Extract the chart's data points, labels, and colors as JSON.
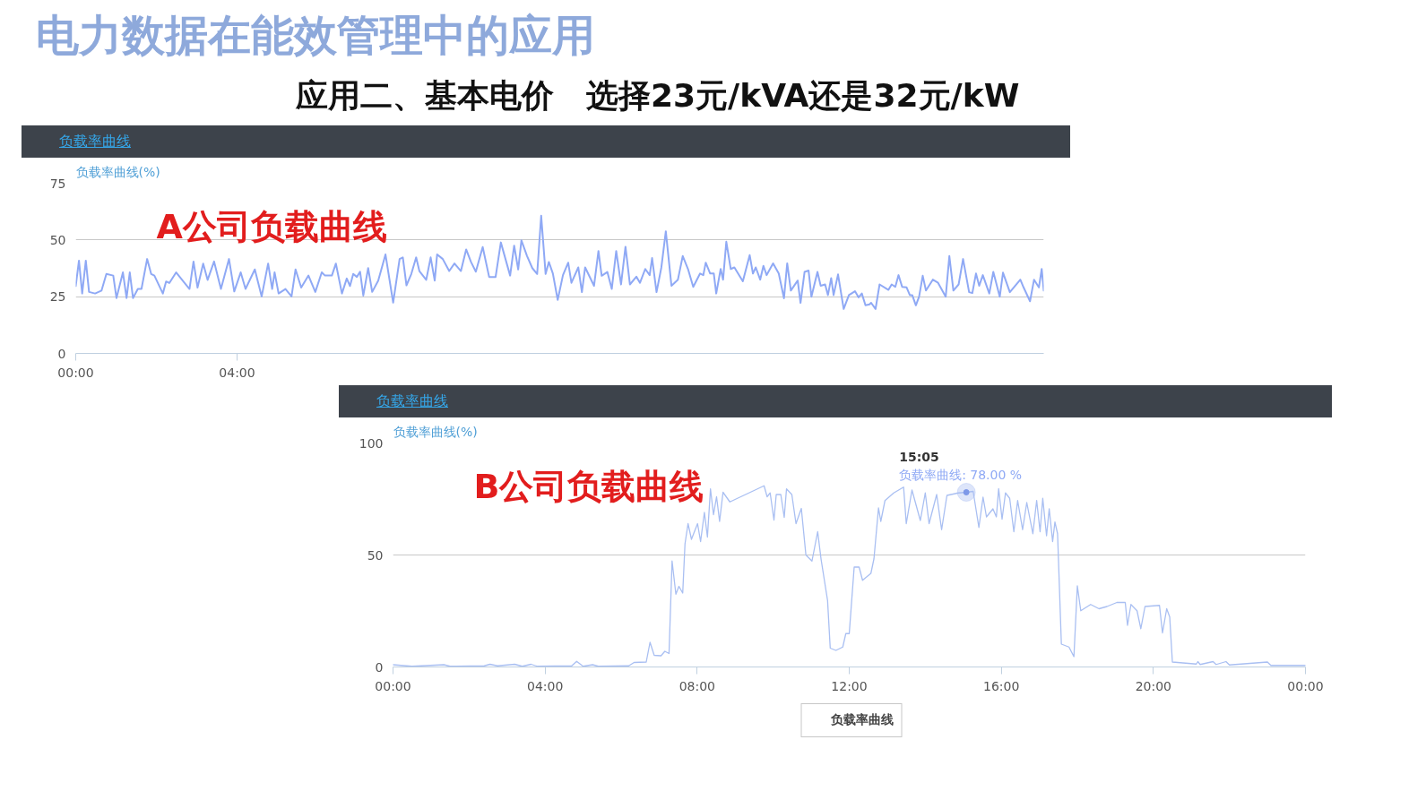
{
  "chart_data": [
    {
      "type": "line",
      "title": "负载率曲线",
      "ylabel": "负载率曲线(%)",
      "annotations": [
        "电力数据在能效管理中的应用",
        "应用二、基本电价　选择23元/kVA还是32元/kW",
        "A公司负载曲线"
      ],
      "xlim": [
        0,
        24
      ],
      "xticks": [
        {
          "value": 0,
          "label": "00:00"
        },
        {
          "value": 4,
          "label": "04:00"
        }
      ],
      "ylim": [
        0,
        75
      ],
      "yticks": [
        0,
        25,
        50,
        75
      ],
      "grid": "y",
      "marker": "none",
      "line_style": "solid",
      "series": [
        {
          "color": "#8fa9f5",
          "x": [
            0,
            0.08,
            0.16,
            0.25,
            0.33,
            0.48,
            0.64,
            0.76,
            0.93,
            1.01,
            1.17,
            1.26,
            1.34,
            1.42,
            1.54,
            1.63,
            1.77,
            1.87,
            1.95,
            2.16,
            2.24,
            2.32,
            2.49,
            2.61,
            2.82,
            2.92,
            3.02,
            3.16,
            3.27,
            3.43,
            3.6,
            3.8,
            3.93,
            4.09,
            4.21,
            4.44,
            4.61,
            4.77,
            4.87,
            4.93,
            5.03,
            5.2,
            5.35,
            5.45,
            5.59,
            5.77,
            5.94,
            6.1,
            6.18,
            6.35,
            6.45,
            6.6,
            6.72,
            6.8,
            6.88,
            6.97,
            7.05,
            7.13,
            7.25,
            7.35,
            7.5,
            7.68,
            7.87,
            8.03,
            8.11,
            8.2,
            8.32,
            8.44,
            8.52,
            8.69,
            8.8,
            8.9,
            8.96,
            9.1,
            9.26,
            9.39,
            9.55,
            9.68,
            9.8,
            9.92,
            10.09,
            10.25,
            10.41,
            10.54,
            10.77,
            10.87,
            10.97,
            11.05,
            11.19,
            11.32,
            11.44,
            11.54,
            11.65,
            11.73,
            11.83,
            11.95,
            12.08,
            12.21,
            12.29,
            12.46,
            12.55,
            12.63,
            12.85,
            12.96,
            13.04,
            13.18,
            13.29,
            13.4,
            13.52,
            13.63,
            13.74,
            13.9,
            13.99,
            14.12,
            14.23,
            14.29,
            14.4,
            14.52,
            14.63,
            14.77,
            14.93,
            15.05,
            15.18,
            15.31,
            15.48,
            15.56,
            15.62,
            15.73,
            15.82,
            15.88,
            15.99,
            16.05,
            16.13,
            16.24,
            16.33,
            16.54,
            16.71,
            16.79,
            16.86,
            16.97,
            17.05,
            17.13,
            17.29,
            17.43,
            17.56,
            17.64,
            17.73,
            17.9,
            17.97,
            18.07,
            18.17,
            18.24,
            18.39,
            18.47,
            18.58,
            18.65,
            18.73,
            18.79,
            18.9,
            19.04,
            19.17,
            19.32,
            19.41,
            19.49,
            19.58,
            19.68,
            19.72,
            19.83,
            19.93,
            20.15,
            20.23,
            20.32,
            20.4,
            20.49,
            20.6,
            20.68,
            20.74,
            20.83,
            20.91,
            21.0,
            21.08,
            21.25,
            21.38,
            21.57,
            21.66,
            21.76,
            21.89,
            22.0,
            22.15,
            22.23,
            22.32,
            22.4,
            22.49,
            22.65,
            22.75,
            22.91,
            22.99,
            23.16,
            23.42,
            23.5,
            23.66,
            23.76,
            23.88,
            23.95,
            24
          ],
          "values": [
            29.7,
            40.9,
            26.4,
            40.9,
            27.1,
            26.4,
            27.7,
            35,
            34.3,
            24.4,
            35.7,
            24.4,
            35.7,
            24.4,
            28.4,
            28.4,
            41.6,
            35,
            34.3,
            26.4,
            31.7,
            31,
            35.7,
            33,
            28.4,
            40.5,
            29,
            39.6,
            32.4,
            40.5,
            28.4,
            41.6,
            27.3,
            35.7,
            28.4,
            37,
            25.1,
            39.6,
            28.4,
            35.7,
            26.4,
            28.4,
            25.1,
            37,
            29,
            34.3,
            27.1,
            35.7,
            34.3,
            34.3,
            39.6,
            26.4,
            33,
            29.7,
            35,
            33.7,
            36,
            25.5,
            37.6,
            27.1,
            32.1,
            43.6,
            22.4,
            41.6,
            42.3,
            30,
            35,
            42.3,
            36.3,
            32.4,
            42.3,
            32.1,
            43.6,
            41.6,
            36.3,
            39.6,
            36.3,
            45.8,
            40.3,
            36,
            46.9,
            33.7,
            33.7,
            48.9,
            34.3,
            47.5,
            37,
            49.8,
            42.9,
            37.6,
            35,
            60.7,
            35,
            40.3,
            35.2,
            23.6,
            34.5,
            40,
            31.1,
            37.9,
            27,
            37.9,
            29.8,
            45.1,
            34.2,
            35.9,
            28.4,
            45.1,
            30.4,
            47,
            30.4,
            33.8,
            31.1,
            37.2,
            34.5,
            42,
            27,
            37.9,
            53.8,
            29.8,
            32.5,
            42.9,
            37.2,
            29.3,
            35.2,
            34.5,
            40,
            35.2,
            35.2,
            26.4,
            37.2,
            32.5,
            49.2,
            37.2,
            37.9,
            31.8,
            43.3,
            35.2,
            37.9,
            32.5,
            38.6,
            34.5,
            39.7,
            35.2,
            24.3,
            39.7,
            27.7,
            32.1,
            22.3,
            35.9,
            36.5,
            25,
            35.9,
            29.8,
            30.4,
            25.7,
            33.2,
            25.7,
            34.8,
            19.6,
            25.7,
            27.4,
            24.7,
            26.4,
            21.2,
            21.6,
            22.3,
            19.6,
            30.4,
            28,
            30.4,
            29.3,
            34.5,
            29.3,
            29.1,
            25.7,
            25.7,
            21.2,
            25,
            34.2,
            27.7,
            32.5,
            31.1,
            25,
            42.9,
            27.7,
            30.4,
            41.6,
            27,
            26.6,
            35.2,
            29.8,
            34.5,
            26.4,
            35.9,
            25,
            35.6,
            27,
            32.5,
            29.1,
            23,
            32.5,
            29.1,
            37.2,
            27.7
          ]
        }
      ]
    },
    {
      "type": "line",
      "title": "负载率曲线",
      "ylabel": "负载率曲线(%)",
      "annotations": [
        {
          "text": "15:05\n负载率曲线: 78.00 %",
          "x": 15.08,
          "y": 78
        },
        "B公司负载曲线"
      ],
      "xlim": [
        0,
        24
      ],
      "xticks": [
        {
          "value": 0,
          "label": "00:00"
        },
        {
          "value": 4,
          "label": "04:00"
        },
        {
          "value": 8,
          "label": "08:00"
        },
        {
          "value": 12,
          "label": "12:00"
        },
        {
          "value": 16,
          "label": "16:00"
        },
        {
          "value": 20,
          "label": "20:00"
        },
        {
          "value": 24,
          "label": "00:00"
        }
      ],
      "ylim": [
        0,
        100
      ],
      "yticks": [
        0,
        50,
        100
      ],
      "grid": "y",
      "legend": "bottom",
      "marker": "none",
      "line_style": "solid",
      "series": [
        {
          "name": "负载率曲线",
          "color": "#a9bff2",
          "x": [
            0,
            0.5,
            1.34,
            1.5,
            2.4,
            2.55,
            2.75,
            3.2,
            3.4,
            3.63,
            3.8,
            4.7,
            4.83,
            5.0,
            5.25,
            5.4,
            6.2,
            6.34,
            6.66,
            6.76,
            6.87,
            7.05,
            7.15,
            7.26,
            7.34,
            7.44,
            7.52,
            7.62,
            7.68,
            7.76,
            7.85,
            8.01,
            8.09,
            8.19,
            8.27,
            8.35,
            8.43,
            8.51,
            8.59,
            8.68,
            8.86,
            9.76,
            9.84,
            9.92,
            10.02,
            10.08,
            10.2,
            10.29,
            10.35,
            10.49,
            10.6,
            10.74,
            10.86,
            11.02,
            11.17,
            11.26,
            11.43,
            11.5,
            11.65,
            11.83,
            11.91,
            12.0,
            12.13,
            12.26,
            12.35,
            12.57,
            12.65,
            12.77,
            12.83,
            12.94,
            13.17,
            13.43,
            13.5,
            13.65,
            13.87,
            14.0,
            14.1,
            14.3,
            14.43,
            14.57,
            14.87,
            15.08,
            15.26,
            15.41,
            15.52,
            15.61,
            15.78,
            15.87,
            15.93,
            16.02,
            16.11,
            16.22,
            16.33,
            16.43,
            16.56,
            16.67,
            16.83,
            16.93,
            17.02,
            17.09,
            17.19,
            17.26,
            17.35,
            17.41,
            17.48,
            17.58,
            17.78,
            17.91,
            18.0,
            18.09,
            18.35,
            18.57,
            18.78,
            19.04,
            19.26,
            19.32,
            19.41,
            19.57,
            19.67,
            19.78,
            20.16,
            20.24,
            20.35,
            20.43,
            20.5,
            21.13,
            21.17,
            21.23,
            21.57,
            21.65,
            21.91,
            22.0,
            23.0,
            23.09,
            24
          ],
          "values": [
            1,
            0.3,
            1,
            0.3,
            0.5,
            1.2,
            0.5,
            1.2,
            0.3,
            1.2,
            0.3,
            0.5,
            2.5,
            0.3,
            1,
            0.3,
            0.5,
            2,
            2.2,
            11,
            5.2,
            5,
            7,
            6,
            47.3,
            32.5,
            36,
            33,
            55,
            64,
            57,
            64,
            56,
            69,
            58,
            79.5,
            68,
            76,
            65,
            78,
            73.7,
            80.9,
            76,
            77.7,
            65.6,
            77,
            77,
            66.8,
            79.5,
            77,
            64,
            70.8,
            50,
            47.3,
            60.4,
            48,
            29.7,
            8.4,
            7.4,
            8.9,
            14.9,
            14.9,
            44.6,
            44.6,
            38.7,
            41.8,
            48.3,
            71,
            65,
            74.3,
            77.7,
            80.3,
            64,
            79,
            65.4,
            77.7,
            64,
            77,
            61.3,
            76.6,
            77.7,
            78,
            78.4,
            62.3,
            75.8,
            67,
            70.6,
            67,
            79.6,
            66,
            77.7,
            75.3,
            60.4,
            74.3,
            61.3,
            73.4,
            59.5,
            74.3,
            60.4,
            75.3,
            58.6,
            70.6,
            56,
            64.7,
            59.5,
            10.2,
            8.9,
            4.6,
            36.2,
            25.1,
            27.9,
            26,
            27,
            28.8,
            28.8,
            18.6,
            27.9,
            25.1,
            17.1,
            27,
            27.5,
            15.2,
            26,
            22.3,
            2.2,
            1.3,
            2.4,
            1.1,
            2.4,
            1.1,
            2.4,
            0.9,
            2.2,
            0.7,
            0.7
          ]
        }
      ]
    }
  ]
}
